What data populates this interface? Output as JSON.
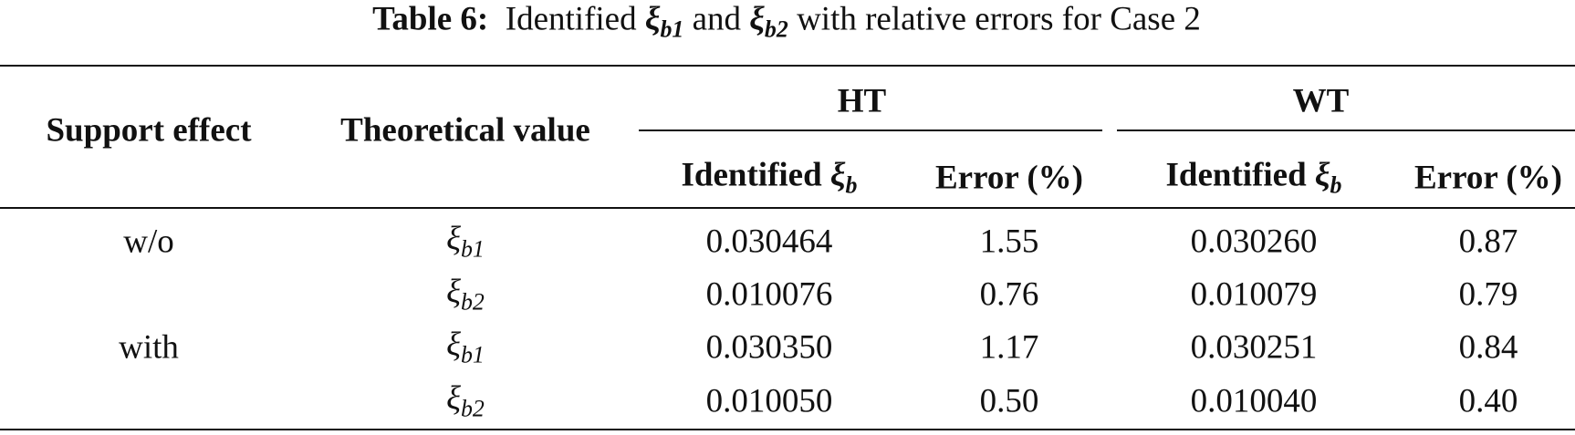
{
  "caption": {
    "label": "Table 6:",
    "parts": [
      {
        "text": "Identified "
      },
      {
        "sym": "ξ",
        "sub": "b1"
      },
      {
        "text": " and "
      },
      {
        "sym": "ξ",
        "sub": "b2"
      },
      {
        "text": " with relative errors for Case 2"
      }
    ]
  },
  "table": {
    "header": {
      "support": "Support effect",
      "theoretical": "Theoretical value",
      "groups": [
        {
          "name": "HT",
          "columns": [
            [
              {
                "text": "Identified "
              },
              {
                "sym": "ξ",
                "sub": "b"
              }
            ],
            [
              {
                "text": "Error (%)"
              }
            ]
          ]
        },
        {
          "name": "WT",
          "columns": [
            [
              {
                "text": "Identified "
              },
              {
                "sym": "ξ",
                "sub": "b"
              }
            ],
            [
              {
                "text": "Error (%)"
              }
            ]
          ]
        }
      ]
    },
    "rows": [
      {
        "support": "w/o",
        "theoretical": [
          {
            "sym": "ξ",
            "sub": "b1"
          }
        ],
        "cells": [
          "0.030464",
          "1.55",
          "0.030260",
          "0.87"
        ]
      },
      {
        "theoretical": [
          {
            "sym": "ξ",
            "sub": "b2"
          }
        ],
        "cells": [
          "0.010076",
          "0.76",
          "0.010079",
          "0.79"
        ]
      },
      {
        "support": "with",
        "theoretical": [
          {
            "sym": "ξ",
            "sub": "b1"
          }
        ],
        "cells": [
          "0.030350",
          "1.17",
          "0.030251",
          "0.84"
        ]
      },
      {
        "theoretical": [
          {
            "sym": "ξ",
            "sub": "b2"
          }
        ],
        "cells": [
          "0.010050",
          "0.50",
          "0.010040",
          "0.40"
        ]
      }
    ]
  }
}
